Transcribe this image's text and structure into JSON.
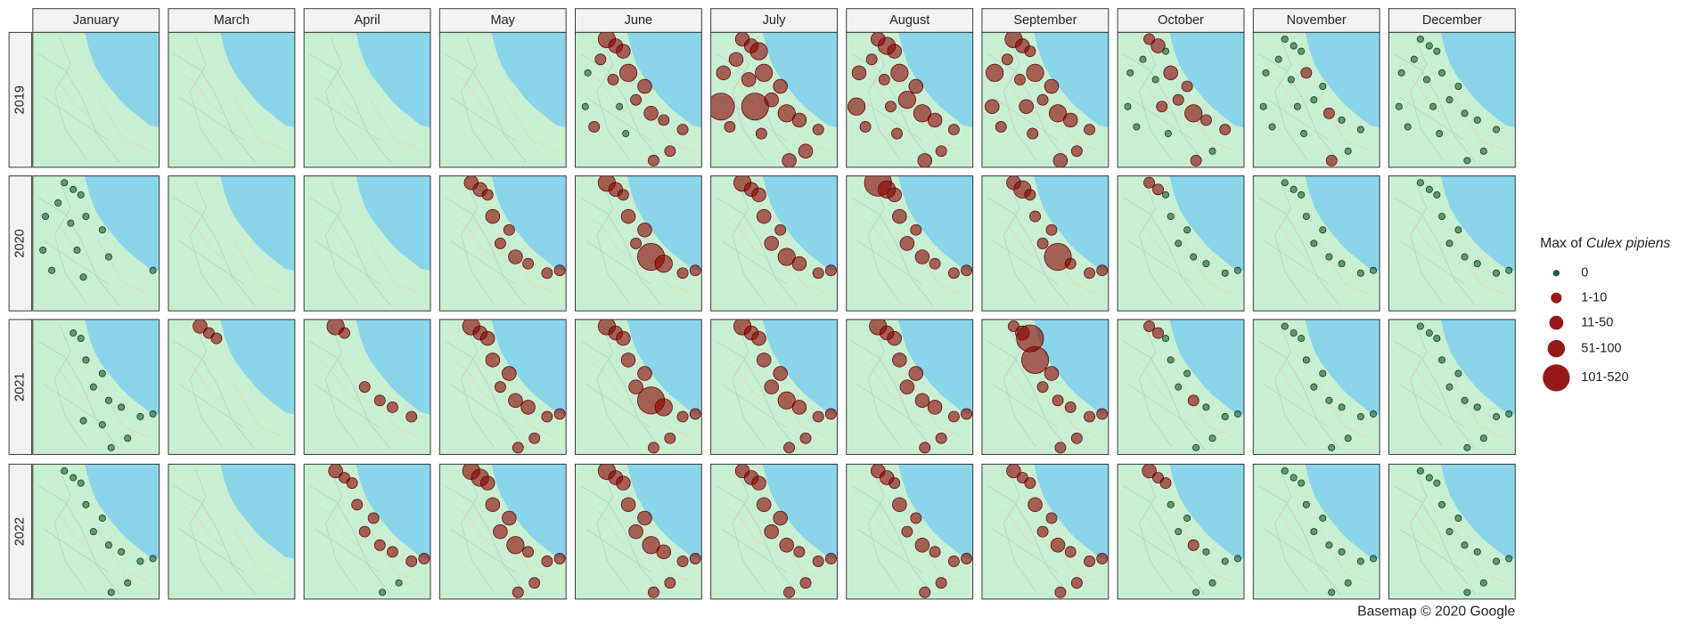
{
  "chart_data": {
    "type": "bubble-map",
    "columns": [
      "January",
      "March",
      "April",
      "May",
      "June",
      "July",
      "August",
      "September",
      "October",
      "November",
      "December"
    ],
    "rows": [
      "2019",
      "2020",
      "2021",
      "2022"
    ],
    "xlim": [
      13.0,
      14.9
    ],
    "ylim": [
      41.5,
      43.0
    ],
    "legend_title": "Max of",
    "legend_title_italic": "Culex pipiens",
    "classes": [
      {
        "label": "0",
        "color": "#1b5e2b"
      },
      {
        "label": "1-10",
        "color": "#8b0000"
      },
      {
        "label": "11-50",
        "color": "#8b0000"
      },
      {
        "label": "51-100",
        "color": "#8b0000"
      },
      {
        "label": "101-520",
        "color": "#8b0000"
      }
    ],
    "sites": [
      {
        "lon": 13.475,
        "lat": 42.925
      },
      {
        "lon": 13.608,
        "lat": 42.85
      },
      {
        "lon": 13.722,
        "lat": 42.79
      },
      {
        "lon": 13.38,
        "lat": 42.7
      },
      {
        "lon": 13.798,
        "lat": 42.55
      },
      {
        "lon": 13.57,
        "lat": 42.475
      },
      {
        "lon": 14.045,
        "lat": 42.4
      },
      {
        "lon": 13.912,
        "lat": 42.25
      },
      {
        "lon": 14.14,
        "lat": 42.1
      },
      {
        "lon": 14.33,
        "lat": 42.025
      },
      {
        "lon": 13.152,
        "lat": 42.175
      },
      {
        "lon": 13.285,
        "lat": 41.95
      },
      {
        "lon": 14.615,
        "lat": 41.92
      },
      {
        "lon": 14.805,
        "lat": 41.95
      },
      {
        "lon": 14.425,
        "lat": 41.68
      },
      {
        "lon": 14.178,
        "lat": 41.575
      },
      {
        "lon": 13.76,
        "lat": 41.875
      },
      {
        "lon": 13.19,
        "lat": 42.55
      },
      {
        "lon": 13.665,
        "lat": 42.175
      },
      {
        "lon": 14.045,
        "lat": 41.83
      }
    ],
    "panels": [
      [
        [
          null,
          null,
          null,
          null,
          null,
          null,
          null,
          null,
          null,
          null,
          null,
          null,
          null,
          null,
          null,
          null,
          null,
          null,
          null,
          null
        ],
        [
          null,
          null,
          null,
          null,
          null,
          null,
          null,
          null,
          null,
          null,
          null,
          null,
          null,
          null,
          null,
          null,
          null,
          null,
          null,
          null
        ],
        [
          null,
          null,
          null,
          null,
          null,
          null,
          null,
          null,
          null,
          null,
          null,
          null,
          null,
          null,
          null,
          null,
          null,
          null,
          null,
          null
        ],
        [
          null,
          null,
          null,
          null,
          null,
          null,
          null,
          null,
          null,
          null,
          null,
          null,
          null,
          null,
          null,
          null,
          null,
          null,
          null,
          null
        ],
        [
          3,
          2,
          2,
          1,
          3,
          1,
          2,
          1,
          2,
          1,
          0,
          1,
          1,
          null,
          1,
          1,
          0,
          0,
          0,
          null
        ],
        [
          2,
          2,
          3,
          2,
          3,
          2,
          2,
          2,
          3,
          2,
          4,
          1,
          1,
          null,
          2,
          2,
          1,
          2,
          4,
          null
        ],
        [
          2,
          3,
          2,
          1,
          3,
          1,
          2,
          3,
          3,
          2,
          3,
          1,
          1,
          null,
          1,
          2,
          1,
          2,
          1,
          null
        ],
        [
          3,
          2,
          1,
          1,
          3,
          1,
          2,
          1,
          3,
          2,
          2,
          1,
          1,
          null,
          1,
          2,
          1,
          3,
          2,
          null
        ],
        [
          1,
          2,
          0,
          0,
          2,
          0,
          1,
          1,
          3,
          1,
          0,
          0,
          1,
          null,
          0,
          1,
          0,
          0,
          1,
          null
        ],
        [
          0,
          0,
          0,
          0,
          1,
          0,
          0,
          0,
          1,
          0,
          0,
          0,
          0,
          null,
          0,
          1,
          0,
          0,
          0,
          null
        ],
        [
          0,
          0,
          0,
          0,
          0,
          0,
          0,
          0,
          0,
          0,
          0,
          0,
          0,
          null,
          0,
          0,
          0,
          0,
          0,
          null
        ]
      ],
      [
        [
          0,
          0,
          0,
          0,
          0,
          0,
          0,
          null,
          0,
          null,
          0,
          0,
          null,
          0,
          null,
          null,
          0,
          0,
          0,
          null
        ],
        [
          null,
          null,
          null,
          null,
          null,
          null,
          null,
          null,
          null,
          null,
          null,
          null,
          null,
          null,
          null,
          null,
          null,
          null,
          null,
          null
        ],
        [
          null,
          null,
          null,
          null,
          null,
          null,
          null,
          null,
          null,
          null,
          null,
          null,
          null,
          null,
          null,
          null,
          null,
          null,
          null,
          null
        ],
        [
          2,
          2,
          1,
          null,
          2,
          null,
          1,
          1,
          2,
          1,
          null,
          null,
          1,
          1,
          null,
          null,
          null,
          null,
          null,
          null
        ],
        [
          3,
          2,
          1,
          null,
          2,
          null,
          2,
          1,
          4,
          3,
          null,
          null,
          1,
          1,
          null,
          null,
          null,
          null,
          null,
          null
        ],
        [
          3,
          2,
          2,
          null,
          2,
          null,
          1,
          2,
          3,
          2,
          null,
          null,
          1,
          1,
          null,
          null,
          null,
          null,
          null,
          null
        ],
        [
          4,
          3,
          2,
          null,
          2,
          null,
          1,
          2,
          2,
          1,
          null,
          null,
          1,
          1,
          null,
          null,
          null,
          null,
          null,
          null
        ],
        [
          2,
          3,
          1,
          null,
          1,
          null,
          1,
          1,
          4,
          1,
          null,
          null,
          1,
          1,
          null,
          null,
          null,
          null,
          null,
          null
        ],
        [
          1,
          1,
          0,
          null,
          0,
          null,
          0,
          0,
          0,
          0,
          null,
          null,
          0,
          0,
          null,
          null,
          null,
          null,
          null,
          null
        ],
        [
          0,
          0,
          0,
          null,
          0,
          null,
          0,
          0,
          0,
          0,
          null,
          null,
          0,
          0,
          null,
          null,
          null,
          null,
          null,
          null
        ],
        [
          0,
          0,
          0,
          null,
          0,
          null,
          0,
          0,
          0,
          0,
          null,
          null,
          0,
          0,
          null,
          null,
          null,
          null,
          null,
          null
        ]
      ],
      [
        [
          null,
          0,
          0,
          null,
          0,
          null,
          0,
          0,
          0,
          0,
          null,
          null,
          0,
          0,
          0,
          0,
          0,
          null,
          null,
          0
        ],
        [
          2,
          1,
          1,
          null,
          null,
          null,
          null,
          null,
          null,
          null,
          null,
          null,
          null,
          null,
          null,
          null,
          null,
          null,
          null,
          null
        ],
        [
          3,
          1,
          null,
          null,
          null,
          null,
          null,
          1,
          1,
          1,
          null,
          null,
          1,
          null,
          null,
          null,
          null,
          null,
          null,
          null
        ],
        [
          3,
          2,
          2,
          null,
          2,
          null,
          2,
          1,
          2,
          2,
          null,
          null,
          1,
          1,
          1,
          1,
          null,
          null,
          null,
          null
        ],
        [
          3,
          2,
          2,
          null,
          2,
          null,
          2,
          2,
          4,
          3,
          null,
          null,
          1,
          1,
          1,
          1,
          null,
          null,
          null,
          null
        ],
        [
          3,
          2,
          2,
          null,
          2,
          null,
          2,
          2,
          3,
          2,
          null,
          null,
          1,
          1,
          1,
          1,
          null,
          null,
          null,
          null
        ],
        [
          3,
          2,
          2,
          null,
          2,
          null,
          2,
          2,
          2,
          2,
          null,
          null,
          1,
          1,
          1,
          1,
          null,
          null,
          null,
          null
        ],
        [
          1,
          2,
          4,
          null,
          4,
          null,
          2,
          1,
          1,
          1,
          null,
          null,
          1,
          1,
          1,
          1,
          null,
          null,
          null,
          null
        ],
        [
          1,
          1,
          0,
          null,
          0,
          null,
          0,
          0,
          1,
          0,
          null,
          null,
          0,
          0,
          0,
          0,
          null,
          null,
          null,
          null
        ],
        [
          0,
          0,
          0,
          null,
          0,
          null,
          0,
          0,
          0,
          0,
          null,
          null,
          0,
          0,
          0,
          0,
          null,
          null,
          null,
          null
        ],
        [
          0,
          0,
          0,
          null,
          0,
          null,
          0,
          0,
          0,
          0,
          null,
          null,
          0,
          0,
          0,
          0,
          null,
          null,
          null,
          null
        ]
      ],
      [
        [
          0,
          0,
          0,
          null,
          0,
          null,
          0,
          0,
          0,
          0,
          null,
          null,
          0,
          0,
          0,
          0,
          null,
          null,
          null,
          null
        ],
        [
          null,
          null,
          null,
          null,
          null,
          null,
          null,
          null,
          null,
          null,
          null,
          null,
          null,
          null,
          null,
          null,
          null,
          null,
          null,
          null
        ],
        [
          2,
          1,
          1,
          null,
          1,
          null,
          1,
          1,
          1,
          1,
          null,
          null,
          1,
          1,
          0,
          0,
          null,
          null,
          null,
          null
        ],
        [
          3,
          3,
          2,
          null,
          2,
          null,
          2,
          2,
          3,
          1,
          null,
          null,
          1,
          1,
          1,
          1,
          null,
          null,
          null,
          null
        ],
        [
          3,
          2,
          2,
          null,
          2,
          null,
          2,
          2,
          3,
          2,
          null,
          null,
          1,
          1,
          1,
          1,
          null,
          null,
          null,
          null
        ],
        [
          2,
          2,
          2,
          null,
          2,
          null,
          2,
          2,
          2,
          1,
          null,
          null,
          1,
          1,
          1,
          1,
          null,
          null,
          null,
          null
        ],
        [
          2,
          2,
          1,
          null,
          2,
          null,
          1,
          1,
          2,
          1,
          null,
          null,
          1,
          1,
          1,
          1,
          null,
          null,
          null,
          null
        ],
        [
          2,
          1,
          1,
          null,
          2,
          null,
          1,
          1,
          2,
          1,
          null,
          null,
          1,
          1,
          1,
          1,
          null,
          null,
          null,
          null
        ],
        [
          2,
          1,
          1,
          null,
          0,
          null,
          0,
          0,
          1,
          0,
          null,
          null,
          0,
          0,
          0,
          0,
          null,
          null,
          null,
          null
        ],
        [
          0,
          0,
          0,
          null,
          0,
          null,
          0,
          0,
          0,
          0,
          null,
          null,
          0,
          0,
          0,
          0,
          null,
          null,
          null,
          null
        ],
        [
          0,
          0,
          0,
          null,
          0,
          null,
          0,
          0,
          0,
          0,
          null,
          null,
          0,
          0,
          0,
          0,
          null,
          null,
          null,
          null
        ]
      ]
    ],
    "caption": "Basemap © 2020 Google"
  }
}
